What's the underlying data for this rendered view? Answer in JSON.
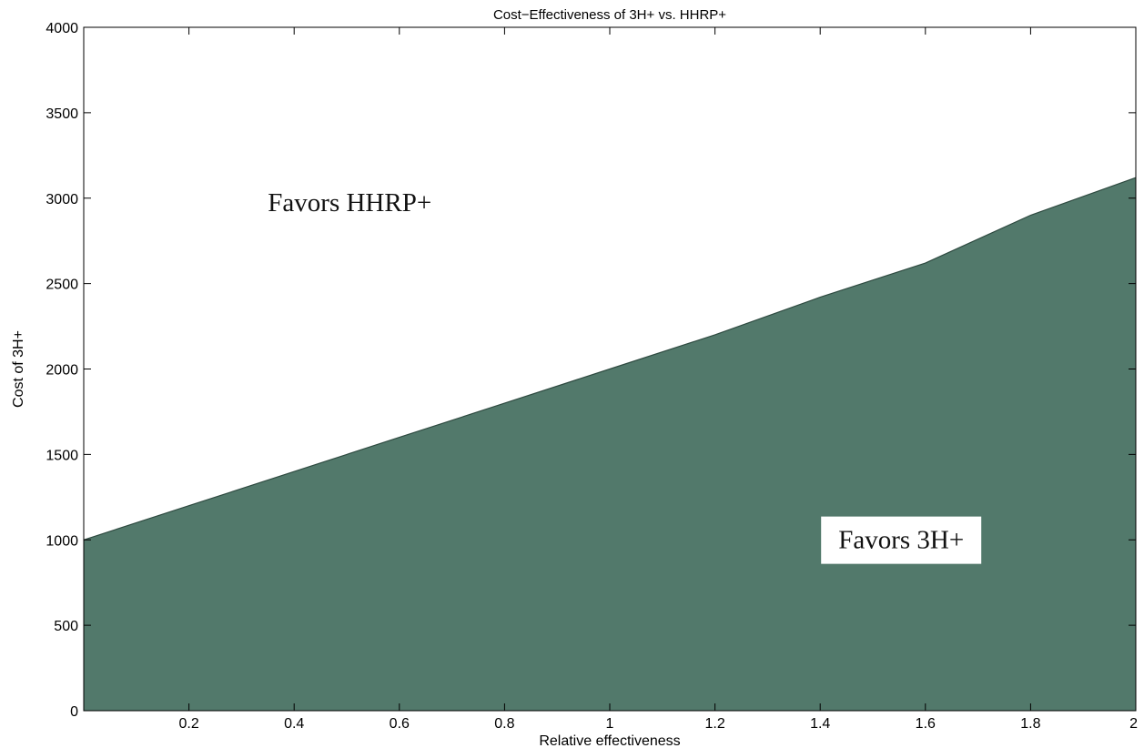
{
  "chart_data": {
    "type": "area",
    "title": "Cost−Effectiveness of 3H+ vs. HHRP+",
    "xlabel": "Relative effectiveness",
    "ylabel": "Cost of 3H+",
    "xlim": [
      0,
      2
    ],
    "ylim": [
      0,
      4000
    ],
    "x_ticks": [
      0.2,
      0.4,
      0.6,
      0.8,
      1,
      1.2,
      1.4,
      1.6,
      1.8,
      2
    ],
    "x_tick_labels": [
      "0.2",
      "0.4",
      "0.6",
      "0.8",
      "1",
      "1.2",
      "1.4",
      "1.6",
      "1.8",
      "2"
    ],
    "y_ticks": [
      0,
      500,
      1000,
      1500,
      2000,
      2500,
      3000,
      3500,
      4000
    ],
    "y_tick_labels": [
      "0",
      "500",
      "1000",
      "1500",
      "2000",
      "2500",
      "3000",
      "3500",
      "4000"
    ],
    "grid": false,
    "series": [
      {
        "color": "#52796b",
        "x": [
          0,
          0.2,
          0.4,
          0.6,
          0.8,
          1.0,
          1.2,
          1.4,
          1.6,
          1.8,
          2.0
        ],
        "values": [
          1000,
          1200,
          1400,
          1600,
          1800,
          2000,
          2200,
          2420,
          2620,
          2900,
          3120
        ]
      }
    ],
    "annotations": [
      {
        "text": "Favors HHRP+",
        "x": 0.35,
        "y": 3000,
        "boxed": false
      },
      {
        "text": "Favors 3H+",
        "x": 1.4,
        "y": 950,
        "boxed": true
      }
    ]
  }
}
